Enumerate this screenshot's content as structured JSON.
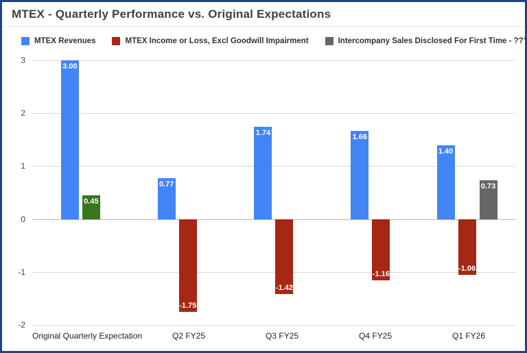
{
  "frame": {
    "border_color": "#1c4587",
    "background": "#ffffff"
  },
  "title": "MTEX - Quarterly Performance vs. Original Expectations",
  "legend": [
    {
      "label": "MTEX Revenues",
      "color": "#4285f4"
    },
    {
      "label": "MTEX Income or Loss, Excl Goodwill Impairment",
      "color": "#a52714"
    },
    {
      "label": "Intercompany Sales Disclosed For First Time - ?????",
      "color": "#666666"
    }
  ],
  "chart_data": {
    "type": "bar",
    "title": "MTEX - Quarterly Performance vs. Original Expectations",
    "categories": [
      "Original Quarterly Expectation",
      "Q2 FY25",
      "Q3 FY25",
      "Q4 FY25",
      "Q1 FY26"
    ],
    "series": [
      {
        "name": "MTEX Revenues",
        "color": "#4285f4",
        "values": [
          3.0,
          0.77,
          1.74,
          1.66,
          1.4
        ]
      },
      {
        "name": "MTEX Income or Loss, Excl Goodwill Impairment",
        "color": "#a52714",
        "point_colors": [
          "#38761d",
          "#a52714",
          "#a52714",
          "#a52714",
          "#a52714"
        ],
        "values": [
          0.45,
          -1.75,
          -1.42,
          -1.16,
          -1.06
        ]
      },
      {
        "name": "Intercompany Sales Disclosed For First Time - ?????",
        "color": "#666666",
        "values": [
          null,
          null,
          null,
          null,
          0.73
        ]
      }
    ],
    "data_labels": [
      "3.00",
      "0.45",
      "0.77",
      "-1.75",
      "1.74",
      "-1.42",
      "1.66",
      "-1.16",
      "1.40",
      "-1.06",
      "0.73"
    ],
    "bar_label_color": "#ffffff",
    "ylim": [
      -2,
      3
    ],
    "yticks": [
      3,
      2,
      1,
      0,
      -1,
      -2
    ],
    "xlabel": "",
    "ylabel": "",
    "grid": true,
    "legend_position": "top"
  }
}
